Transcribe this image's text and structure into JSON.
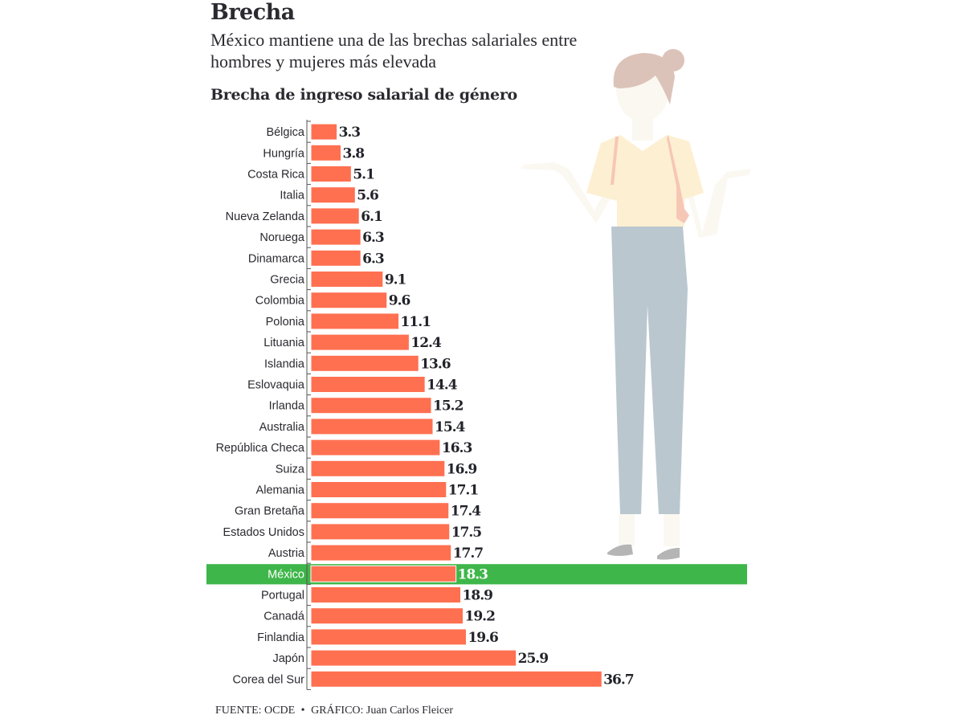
{
  "header": {
    "title": "Brecha",
    "subtitle": "México mantiene una de las brechas salariales entre hombres y mujeres más elevada"
  },
  "footer": {
    "source": "FUENTE: OCDE",
    "separator": "•",
    "credit": "GRÁFICO: Juan Carlos Fleicer"
  },
  "illustration": {
    "description": "woman-shrugging",
    "colors": {
      "hair": "#dcc3b9",
      "skin": "#faf8f1",
      "shirt": "#fdefd2",
      "strap": "#f6c7b6",
      "pants": "#bac7cf",
      "shoes": "#b5b5b5"
    }
  },
  "colors": {
    "bar": "#ff7050",
    "highlight_band": "#3fb64a",
    "axis": "#555555",
    "text": "#2a2a30"
  },
  "chart_data": {
    "type": "bar",
    "orientation": "horizontal",
    "title": "Brecha de ingreso salarial de género",
    "xlabel": "",
    "ylabel": "",
    "xlim": [
      0,
      40
    ],
    "grid": false,
    "legend": "none",
    "highlight": "México",
    "categories": [
      "Bélgica",
      "Hungría",
      "Costa Rica",
      "Italia",
      "Nueva Zelanda",
      "Noruega",
      "Dinamarca",
      "Grecia",
      "Colombia",
      "Polonia",
      "Lituania",
      "Islandia",
      "Eslovaquia",
      "Irlanda",
      "Australia",
      "República Checa",
      "Suiza",
      "Alemania",
      "Gran Bretaña",
      "Estados Unidos",
      "Austria",
      "México",
      "Portugal",
      "Canadá",
      "Finlandia",
      "Japón",
      "Corea del Sur"
    ],
    "values": [
      3.3,
      3.8,
      5.1,
      5.6,
      6.1,
      6.3,
      6.3,
      9.1,
      9.6,
      11.1,
      12.4,
      13.6,
      14.4,
      15.2,
      15.4,
      16.3,
      16.9,
      17.1,
      17.4,
      17.5,
      17.7,
      18.3,
      18.9,
      19.2,
      19.6,
      25.9,
      36.7
    ],
    "value_labels": [
      "3.3",
      "3.8",
      "5.1",
      "5.6",
      "6.1",
      "6.3",
      "6.3",
      "9.1",
      "9.6",
      "11.1",
      "12.4",
      "13.6",
      "14.4",
      "15.2",
      "15.4",
      "16.3",
      "16.9",
      "17.1",
      "17.4",
      "17.5",
      "17.7",
      "18.3",
      "18.9",
      "19.2",
      "19.6",
      "25.9",
      "36.7"
    ]
  }
}
